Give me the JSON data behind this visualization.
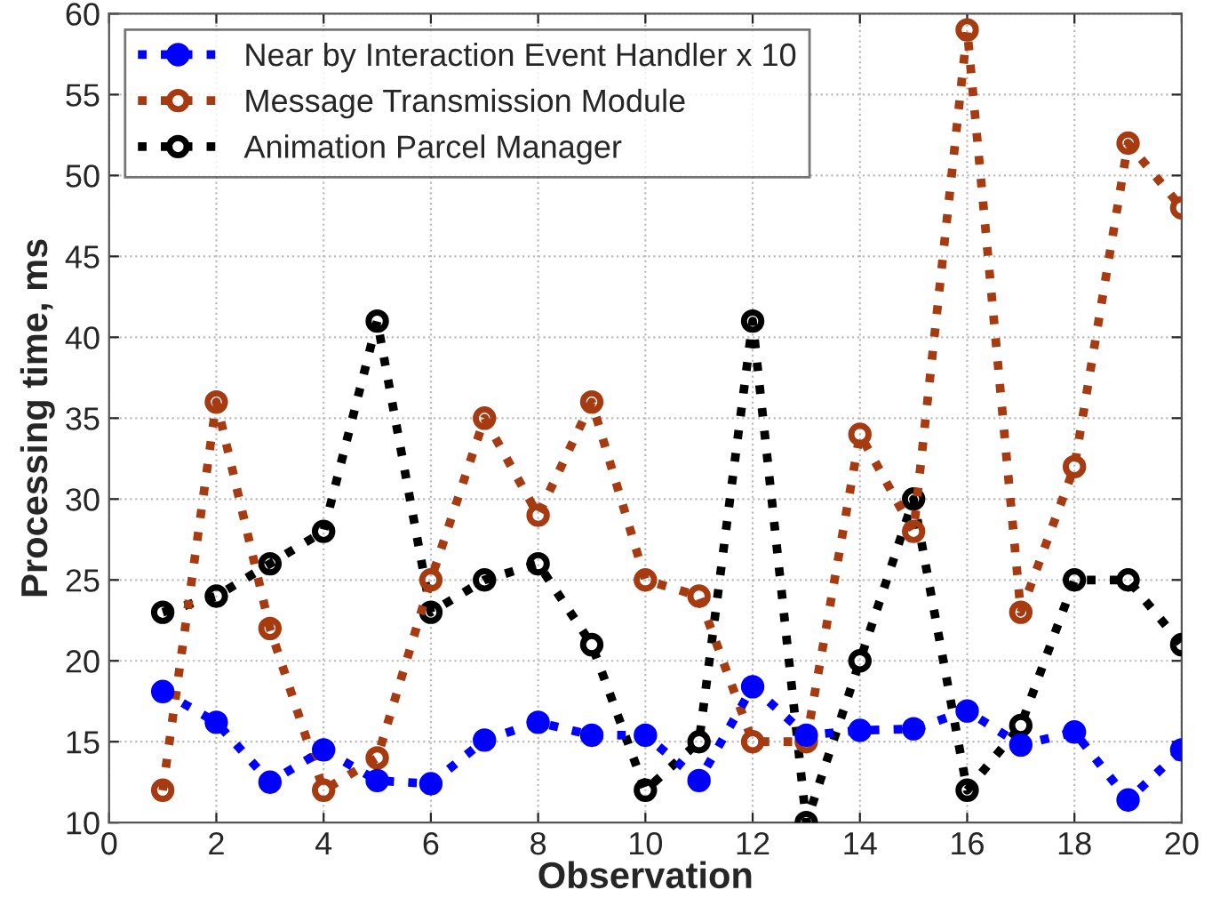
{
  "chart_data": {
    "type": "line",
    "xlabel": "Observation",
    "ylabel": "Processing time, ms",
    "x": [
      1,
      2,
      3,
      4,
      5,
      6,
      7,
      8,
      9,
      10,
      11,
      12,
      13,
      14,
      15,
      16,
      17,
      18,
      19,
      20
    ],
    "series": [
      {
        "name": "Near by Interaction Event Handler x 10",
        "color": "#0000ff",
        "values": [
          18.1,
          16.2,
          12.5,
          14.5,
          12.6,
          12.4,
          15.1,
          16.2,
          15.4,
          15.4,
          12.6,
          18.4,
          15.4,
          15.7,
          15.8,
          16.9,
          14.8,
          15.6,
          11.4,
          14.5
        ]
      },
      {
        "name": "Message Transmission Module",
        "color": "#a63a10",
        "values": [
          12,
          36,
          22,
          12,
          14,
          25,
          35,
          29,
          36,
          25,
          24,
          15,
          15,
          34,
          28,
          59,
          23,
          32,
          52,
          48
        ]
      },
      {
        "name": "Animation Parcel Manager",
        "color": "#000000",
        "values": [
          23,
          24,
          26,
          28,
          41,
          23,
          25,
          26,
          21,
          12,
          15,
          41,
          10,
          20,
          30,
          12,
          16,
          25,
          25,
          21
        ]
      }
    ],
    "xlim": [
      0,
      20
    ],
    "xticks": [
      0,
      2,
      4,
      6,
      8,
      10,
      12,
      14,
      16,
      18,
      20
    ],
    "ylim": [
      10,
      60
    ],
    "yticks": [
      10,
      15,
      20,
      25,
      30,
      35,
      40,
      45,
      50,
      55,
      60
    ],
    "grid": true,
    "legend": "top left",
    "marker": "circle",
    "line_style": "dotted"
  }
}
